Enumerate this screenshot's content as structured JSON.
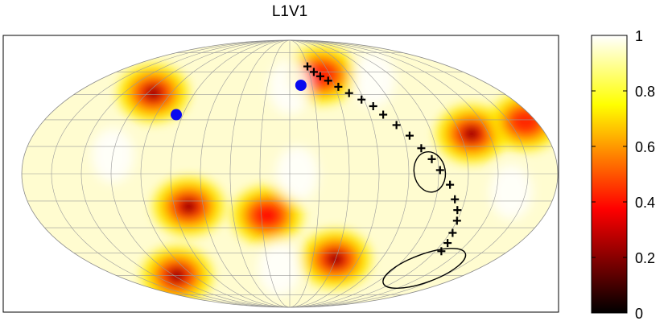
{
  "chart_data": {
    "type": "heatmap",
    "projection": "mollweide",
    "title": "L1V1",
    "value_range": [
      0,
      1
    ],
    "colormap": "hot",
    "colorbar": {
      "ticks": [
        0,
        0.2,
        0.4,
        0.6,
        0.8,
        1
      ],
      "tick_labels": [
        "0",
        "0.2",
        "0.4",
        "0.6",
        "0.8",
        "1"
      ]
    },
    "sky_units": "degrees (longitude -180..180, latitude -90..90)",
    "minima": [
      {
        "lon": -115,
        "lat": 46,
        "value": 0.05
      },
      {
        "lon": 32,
        "lat": 58,
        "value": 0.45
      },
      {
        "lon": 128,
        "lat": 22,
        "value": 0.05
      },
      {
        "lon": 172,
        "lat": 29,
        "value": 0.45
      },
      {
        "lon": -70,
        "lat": -18,
        "value": 0.05
      },
      {
        "lon": -16,
        "lat": -23,
        "value": 0.4
      },
      {
        "lon": 40,
        "lat": -49,
        "value": 0.05
      },
      {
        "lon": -117,
        "lat": -60,
        "value": 0.05
      }
    ],
    "blue_points": [
      {
        "lon": -85,
        "lat": 33
      },
      {
        "lon": 10,
        "lat": 51
      }
    ],
    "cross_track": [
      {
        "lon": 20,
        "lat": 64
      },
      {
        "lon": 25,
        "lat": 60
      },
      {
        "lon": 30,
        "lat": 57
      },
      {
        "lon": 36,
        "lat": 54
      },
      {
        "lon": 43,
        "lat": 50
      },
      {
        "lon": 50,
        "lat": 46
      },
      {
        "lon": 58,
        "lat": 42
      },
      {
        "lon": 65,
        "lat": 38
      },
      {
        "lon": 70,
        "lat": 33
      },
      {
        "lon": 77,
        "lat": 27
      },
      {
        "lon": 84,
        "lat": 21
      },
      {
        "lon": 90,
        "lat": 14
      },
      {
        "lon": 96,
        "lat": 8
      },
      {
        "lon": 101,
        "lat": 2
      },
      {
        "lon": 108,
        "lat": -6
      },
      {
        "lon": 113,
        "lat": -14
      },
      {
        "lon": 117,
        "lat": -20
      },
      {
        "lon": 120,
        "lat": -26
      },
      {
        "lon": 122,
        "lat": -33
      },
      {
        "lon": 124,
        "lat": -39
      },
      {
        "lon": 125,
        "lat": -44
      }
    ],
    "error_ellipses": [
      {
        "center_lon": 94,
        "center_lat": 1,
        "semi_major_deg": 13,
        "semi_minor_deg": 10,
        "angle_deg": 80
      },
      {
        "center_lon": 128,
        "center_lat": -55,
        "semi_major_deg": 28,
        "semi_minor_deg": 9,
        "angle_deg": -20
      }
    ],
    "graticule": {
      "meridian_step_deg": 20,
      "parallel_step_deg": 15
    }
  }
}
